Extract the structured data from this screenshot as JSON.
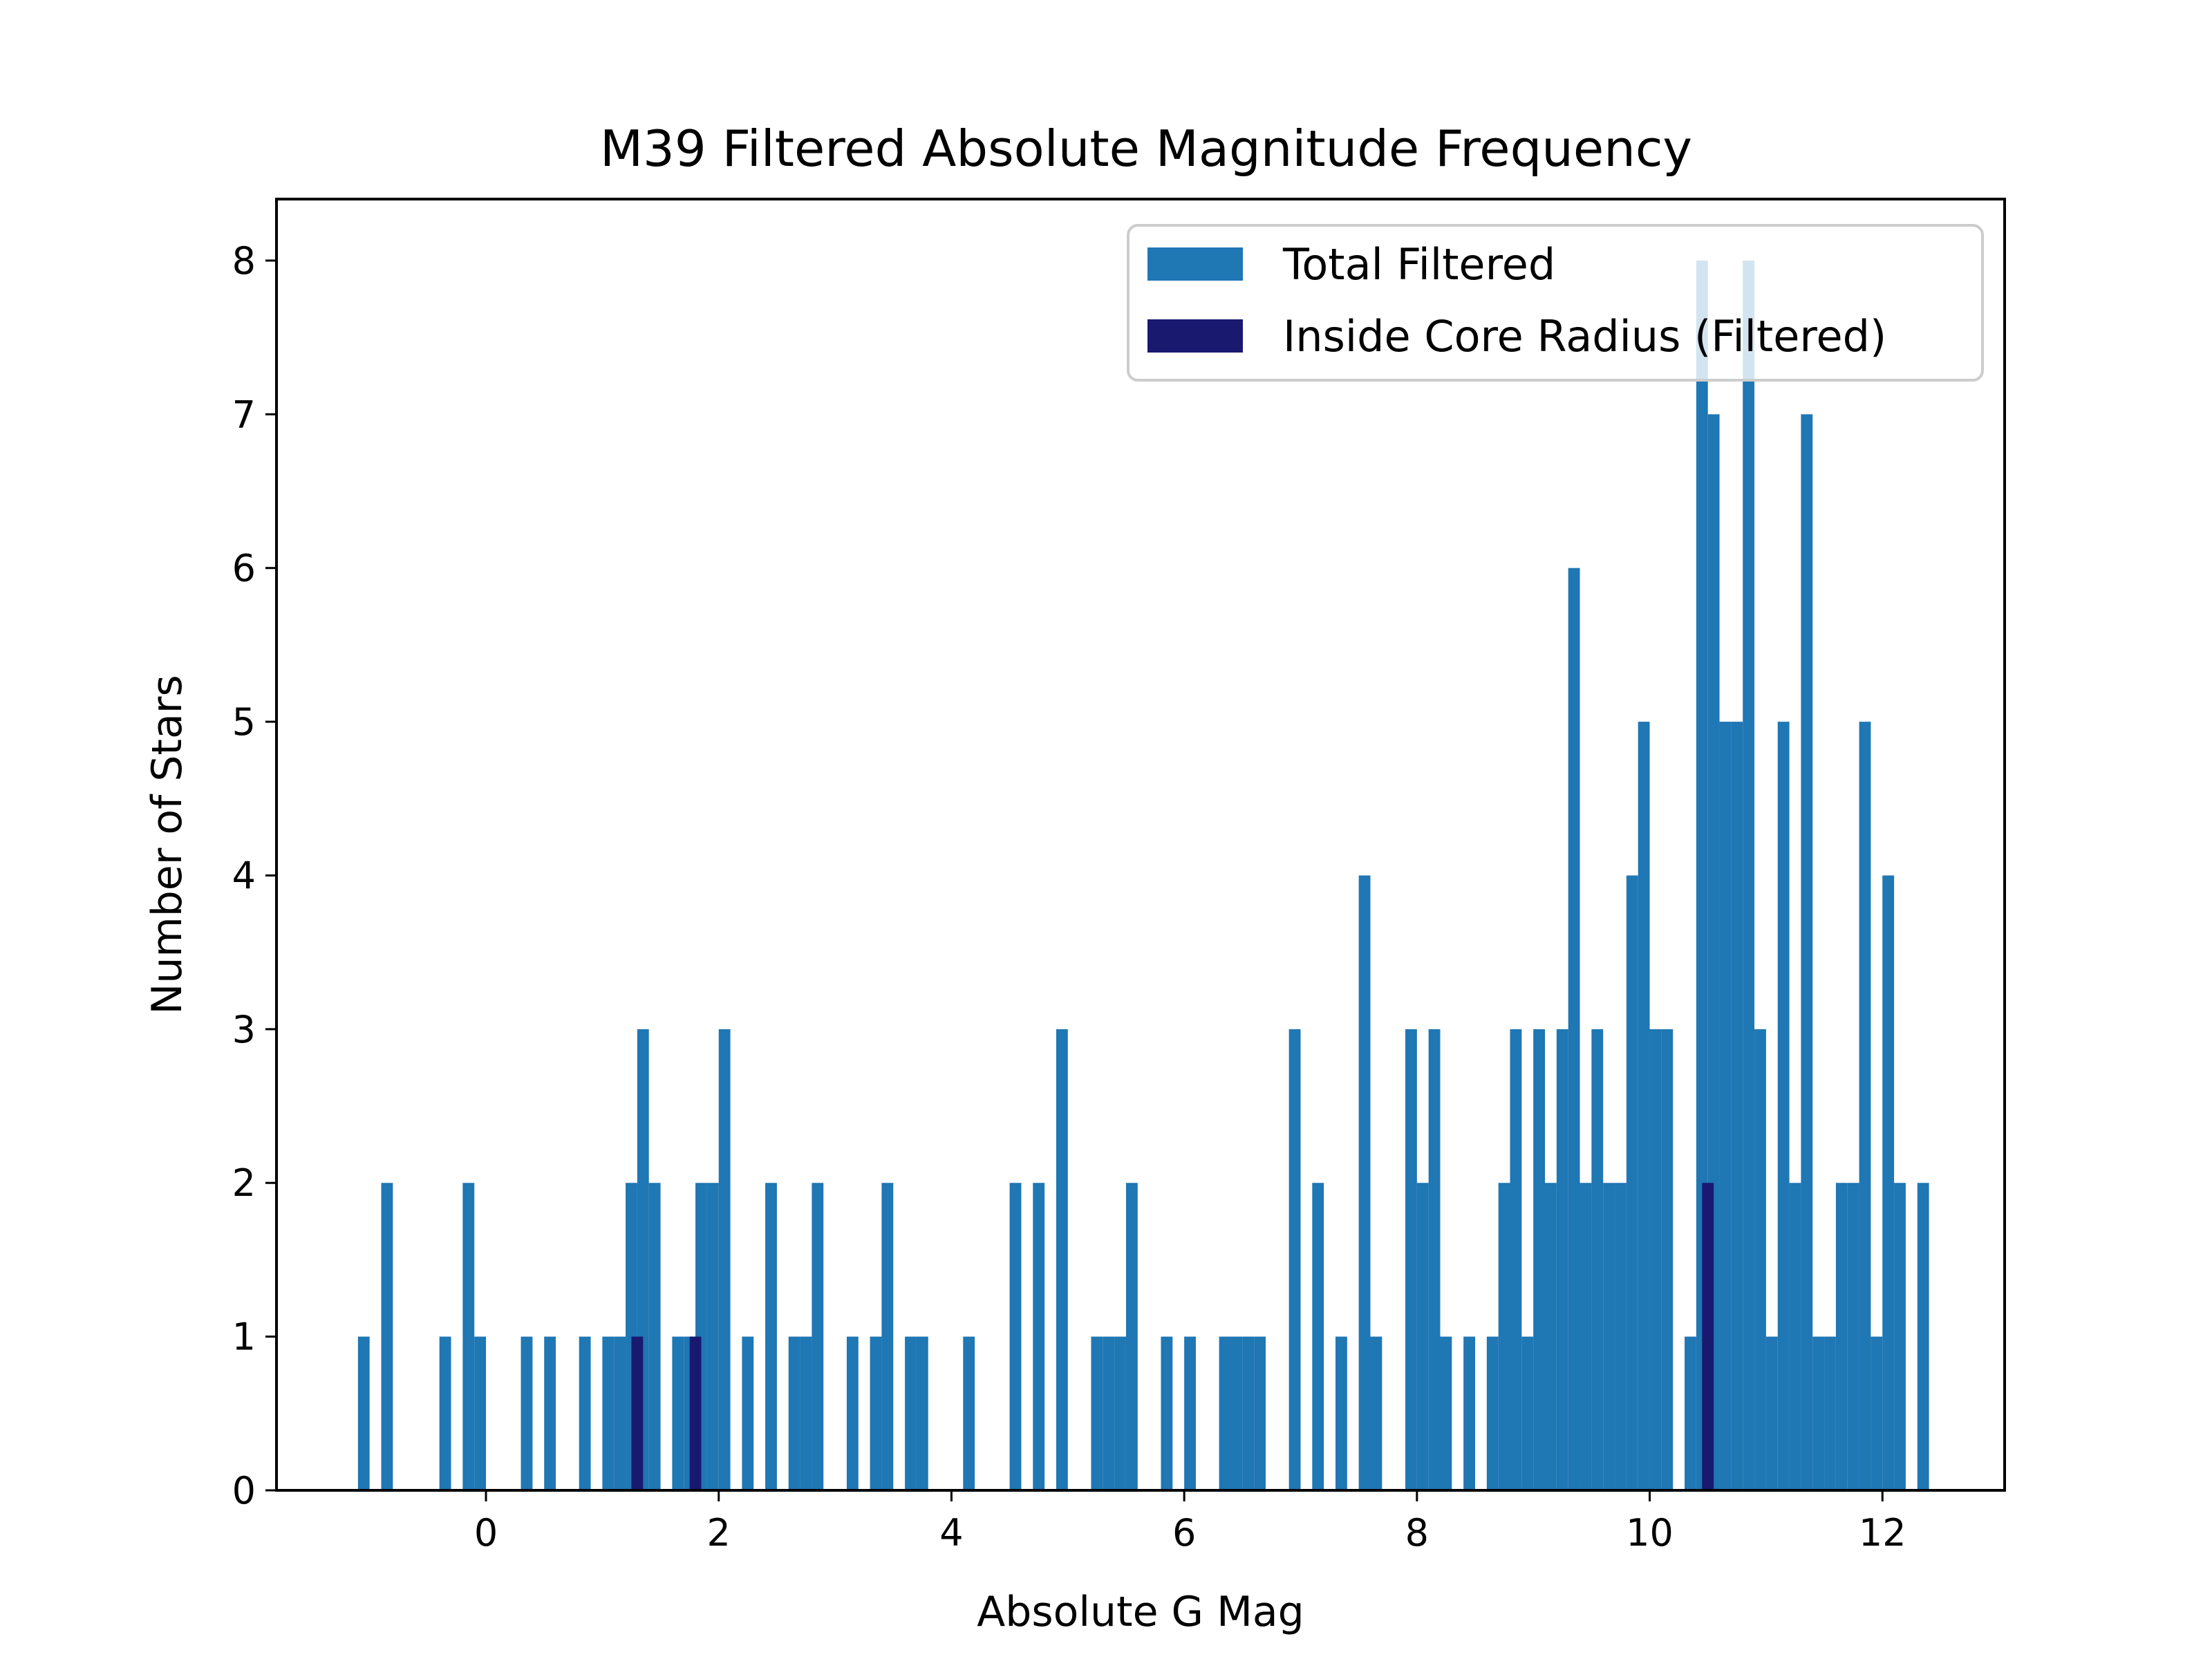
{
  "chart_data": {
    "type": "bar",
    "title": "M39 Filtered Absolute Magnitude Frequency",
    "xlabel": "Absolute G Mag",
    "ylabel": "Number of Stars",
    "xlim": [
      -1.8,
      13.05
    ],
    "ylim": [
      0,
      8.4
    ],
    "xticks": [
      0,
      2,
      4,
      6,
      8,
      10,
      12
    ],
    "yticks": [
      0,
      1,
      2,
      3,
      4,
      5,
      6,
      7,
      8
    ],
    "bin_width": 0.1,
    "grid": false,
    "legend_position": "top-right",
    "series": [
      {
        "name": "Total Filtered",
        "color": "#1f77b4",
        "bins": [
          [
            -1.1,
            1
          ],
          [
            -0.9,
            2
          ],
          [
            -0.4,
            1
          ],
          [
            -0.2,
            2
          ],
          [
            -0.1,
            1
          ],
          [
            0.3,
            1
          ],
          [
            0.5,
            1
          ],
          [
            0.8,
            1
          ],
          [
            1.0,
            1
          ],
          [
            1.1,
            1
          ],
          [
            1.2,
            2
          ],
          [
            1.3,
            3
          ],
          [
            1.4,
            2
          ],
          [
            1.6,
            1
          ],
          [
            1.7,
            1
          ],
          [
            1.8,
            2
          ],
          [
            1.9,
            2
          ],
          [
            2.0,
            3
          ],
          [
            2.2,
            1
          ],
          [
            2.4,
            2
          ],
          [
            2.6,
            1
          ],
          [
            2.7,
            1
          ],
          [
            2.8,
            2
          ],
          [
            3.1,
            1
          ],
          [
            3.3,
            1
          ],
          [
            3.4,
            2
          ],
          [
            3.6,
            1
          ],
          [
            3.7,
            1
          ],
          [
            4.1,
            1
          ],
          [
            4.5,
            2
          ],
          [
            4.7,
            2
          ],
          [
            4.9,
            3
          ],
          [
            5.2,
            1
          ],
          [
            5.3,
            1
          ],
          [
            5.4,
            1
          ],
          [
            5.5,
            2
          ],
          [
            5.8,
            1
          ],
          [
            6.0,
            1
          ],
          [
            6.3,
            1
          ],
          [
            6.4,
            1
          ],
          [
            6.5,
            1
          ],
          [
            6.6,
            1
          ],
          [
            6.9,
            3
          ],
          [
            7.1,
            2
          ],
          [
            7.3,
            1
          ],
          [
            7.5,
            4
          ],
          [
            7.6,
            1
          ],
          [
            7.9,
            3
          ],
          [
            8.0,
            2
          ],
          [
            8.1,
            3
          ],
          [
            8.2,
            1
          ],
          [
            8.4,
            1
          ],
          [
            8.6,
            1
          ],
          [
            8.7,
            2
          ],
          [
            8.8,
            3
          ],
          [
            8.9,
            1
          ],
          [
            9.0,
            3
          ],
          [
            9.1,
            2
          ],
          [
            9.2,
            3
          ],
          [
            9.3,
            6
          ],
          [
            9.4,
            2
          ],
          [
            9.5,
            3
          ],
          [
            9.6,
            2
          ],
          [
            9.7,
            2
          ],
          [
            9.8,
            4
          ],
          [
            9.9,
            5
          ],
          [
            10.0,
            3
          ],
          [
            10.1,
            3
          ],
          [
            10.3,
            1
          ],
          [
            10.4,
            8
          ],
          [
            10.5,
            7
          ],
          [
            10.6,
            5
          ],
          [
            10.7,
            5
          ],
          [
            10.8,
            8
          ],
          [
            10.9,
            3
          ],
          [
            11.0,
            1
          ],
          [
            11.1,
            5
          ],
          [
            11.2,
            2
          ],
          [
            11.3,
            7
          ],
          [
            11.4,
            1
          ],
          [
            11.5,
            1
          ],
          [
            11.6,
            2
          ],
          [
            11.7,
            2
          ],
          [
            11.8,
            5
          ],
          [
            11.9,
            1
          ],
          [
            12.0,
            4
          ],
          [
            12.1,
            2
          ],
          [
            12.3,
            2
          ]
        ]
      },
      {
        "name": "Inside Core Radius (Filtered)",
        "color": "#191970",
        "bins": [
          [
            1.25,
            1
          ],
          [
            1.75,
            1
          ],
          [
            10.45,
            2
          ]
        ]
      }
    ]
  }
}
